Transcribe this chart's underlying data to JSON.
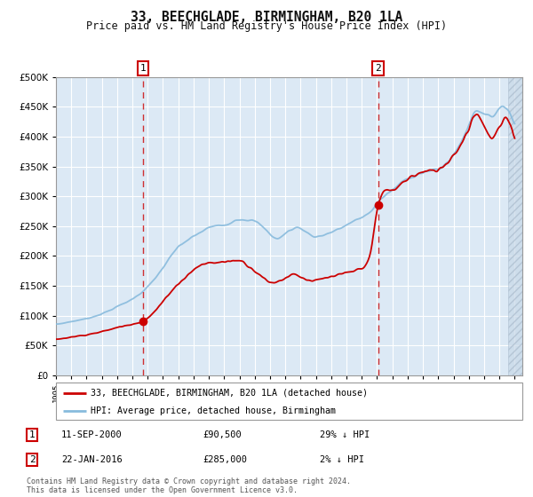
{
  "title": "33, BEECHGLADE, BIRMINGHAM, B20 1LA",
  "subtitle": "Price paid vs. HM Land Registry's House Price Index (HPI)",
  "bg_color": "#ffffff",
  "plot_bg_color": "#dce9f5",
  "grid_color": "#ffffff",
  "red_line_color": "#cc0000",
  "blue_line_color": "#88bbdd",
  "marker1_date_x": 2000.7,
  "marker1_y": 90500,
  "marker2_date_x": 2016.06,
  "marker2_y": 285000,
  "vline1_x": 2000.7,
  "vline2_x": 2016.06,
  "ylim": [
    0,
    500000
  ],
  "xlim": [
    1995.0,
    2025.5
  ],
  "yticks": [
    0,
    50000,
    100000,
    150000,
    200000,
    250000,
    300000,
    350000,
    400000,
    450000,
    500000
  ],
  "xticks": [
    1995,
    1996,
    1997,
    1998,
    1999,
    2000,
    2001,
    2002,
    2003,
    2004,
    2005,
    2006,
    2007,
    2008,
    2009,
    2010,
    2011,
    2012,
    2013,
    2014,
    2015,
    2016,
    2017,
    2018,
    2019,
    2020,
    2021,
    2022,
    2023,
    2024,
    2025
  ],
  "legend_label_red": "33, BEECHGLADE, BIRMINGHAM, B20 1LA (detached house)",
  "legend_label_blue": "HPI: Average price, detached house, Birmingham",
  "annotation1_label": "1",
  "annotation1_date": "11-SEP-2000",
  "annotation1_price": "£90,500",
  "annotation1_hpi": "29% ↓ HPI",
  "annotation2_label": "2",
  "annotation2_date": "22-JAN-2016",
  "annotation2_price": "£285,000",
  "annotation2_hpi": "2% ↓ HPI",
  "footnote": "Contains HM Land Registry data © Crown copyright and database right 2024.\nThis data is licensed under the Open Government Licence v3.0."
}
